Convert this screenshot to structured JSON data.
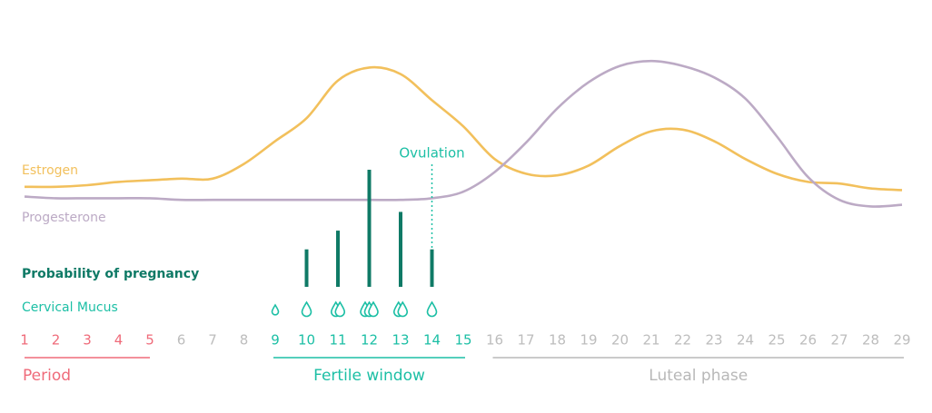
{
  "chart_data": {
    "type": "line",
    "x": [
      1,
      2,
      3,
      4,
      5,
      6,
      7,
      8,
      9,
      10,
      11,
      12,
      13,
      14,
      15,
      16,
      17,
      18,
      19,
      20,
      21,
      22,
      23,
      24,
      25,
      26,
      27,
      28,
      29
    ],
    "ylim": [
      0,
      100
    ],
    "tick_color": "#bdbdbd",
    "series": [
      {
        "name": "Estrogen",
        "color": "#f2c05c",
        "values": [
          19,
          19,
          20,
          22,
          23,
          24,
          24,
          33,
          47,
          61,
          84,
          92,
          88,
          72,
          56,
          36,
          27,
          26,
          32,
          44,
          53,
          54,
          47,
          36,
          27,
          22,
          21,
          18,
          17
        ]
      },
      {
        "name": "Progesterone",
        "color": "#bcaac5",
        "values": [
          13,
          12,
          12,
          12,
          12,
          11,
          11,
          11,
          11,
          11,
          11,
          11,
          11,
          12,
          16,
          28,
          46,
          67,
          83,
          93,
          96,
          93,
          86,
          73,
          50,
          25,
          11,
          7,
          8
        ]
      }
    ],
    "ovulation": {
      "label": "Ovulation",
      "day": 14,
      "color": "#1cbfa5"
    },
    "probability": {
      "name": "Probability of pregnancy",
      "color": "#0f7a66",
      "x": [
        10,
        11,
        12,
        13,
        14
      ],
      "values": [
        8,
        12,
        25,
        16,
        8
      ],
      "ylim": [
        0,
        25
      ]
    },
    "mucus": {
      "name": "Cervical Mucus",
      "color": "#1cbfa5",
      "x": [
        9,
        10,
        11,
        12,
        13,
        14
      ],
      "values": [
        0.5,
        1,
        2,
        3,
        2,
        1
      ]
    },
    "phases": [
      {
        "name": "Period",
        "start": 1,
        "end": 5,
        "color": "#ef6b7a",
        "align": "left"
      },
      {
        "name": "Fertile window",
        "start": 9,
        "end": 15,
        "color": "#1cbfa5",
        "align": "center"
      },
      {
        "name": "Luteal phase",
        "start": 16,
        "end": 29,
        "color": "#b8b8b8",
        "align": "center"
      }
    ]
  }
}
